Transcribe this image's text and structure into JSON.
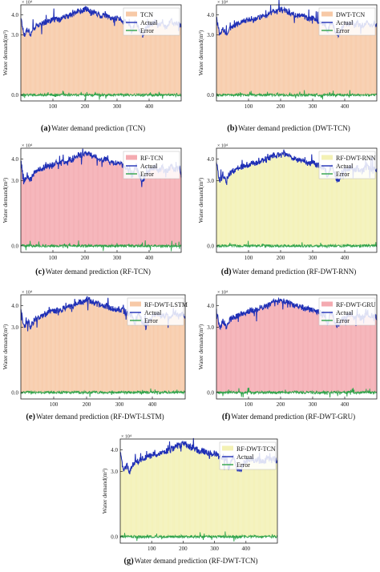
{
  "figure": {
    "colors": {
      "orange_fill": "#f7c9a6",
      "pink_fill": "#f4aab0",
      "yellow_fill": "#f3f1b4",
      "actual_line": "#1f2fb5",
      "error_line": "#2fa34a",
      "axis": "#222222"
    }
  },
  "chart_data": [
    {
      "id": "a",
      "type": "line",
      "caption_letter": "(a)",
      "caption_text": "Water demand prediction (TCN)",
      "ylabel": "Water demand(m³)",
      "xlabel": "",
      "y_scale_note": "× 10⁴",
      "xticks": [
        100,
        200,
        300,
        400
      ],
      "yticks": [
        "4.0",
        "3.0",
        "0.0"
      ],
      "xlim": [
        0,
        500
      ],
      "ylim": [
        -0.3,
        4.5
      ],
      "fill_color": "orange",
      "series": [
        {
          "name": "TCN",
          "style": "filled"
        },
        {
          "name": "Actual",
          "style": "line"
        },
        {
          "name": "Error",
          "style": "line"
        }
      ]
    },
    {
      "id": "b",
      "type": "line",
      "caption_letter": "(b)",
      "caption_text": "Water demand prediction (DWT-TCN)",
      "ylabel": "Water demand(m³)",
      "xlabel": "",
      "y_scale_note": "× 10⁴",
      "xticks": [
        100,
        200,
        300,
        400
      ],
      "yticks": [
        "4.0",
        "3.0",
        "0.0"
      ],
      "xlim": [
        0,
        500
      ],
      "ylim": [
        -0.3,
        4.5
      ],
      "fill_color": "orange",
      "series": [
        {
          "name": "DWT-TCN",
          "style": "filled"
        },
        {
          "name": "Actual",
          "style": "line"
        },
        {
          "name": "Error",
          "style": "line"
        }
      ]
    },
    {
      "id": "c",
      "type": "line",
      "caption_letter": "(c)",
      "caption_text": "Water demand prediction (RF-TCN)",
      "ylabel": "Water demand(m³)",
      "xlabel": "",
      "y_scale_note": "× 10⁴",
      "xticks": [
        100,
        200,
        300,
        400
      ],
      "yticks": [
        "4.0",
        "3.0",
        "0.0"
      ],
      "xlim": [
        0,
        500
      ],
      "ylim": [
        -0.3,
        4.5
      ],
      "fill_color": "pink",
      "series": [
        {
          "name": "RF-TCN",
          "style": "filled"
        },
        {
          "name": "Actual",
          "style": "line"
        },
        {
          "name": "Error",
          "style": "line"
        }
      ]
    },
    {
      "id": "d",
      "type": "line",
      "caption_letter": "(d)",
      "caption_text": "Water demand prediction (RF-DWT-RNN)",
      "ylabel": "Water demand(m³)",
      "xlabel": "",
      "y_scale_note": "× 10⁴",
      "xticks": [
        100,
        200,
        300,
        400
      ],
      "yticks": [
        "4.0",
        "3.0",
        "0.0"
      ],
      "xlim": [
        0,
        500
      ],
      "ylim": [
        -0.3,
        4.5
      ],
      "fill_color": "yellow",
      "series": [
        {
          "name": "RF-DWT-RNN",
          "style": "filled"
        },
        {
          "name": "Actual",
          "style": "line"
        },
        {
          "name": "Error",
          "style": "line"
        }
      ]
    },
    {
      "id": "e",
      "type": "line",
      "caption_letter": "(e)",
      "caption_text": "Water demand prediction (RF-DWT-LSTM)",
      "ylabel": "Water demand(m³)",
      "xlabel": "",
      "y_scale_note": "× 10⁴",
      "xticks": [
        100,
        200,
        300,
        400
      ],
      "yticks": [
        "4.0",
        "3.0",
        "0.0"
      ],
      "xlim": [
        0,
        500
      ],
      "ylim": [
        -0.3,
        4.5
      ],
      "fill_color": "orange",
      "series": [
        {
          "name": "RF-DWT-LSTM",
          "style": "filled"
        },
        {
          "name": "Actual",
          "style": "line"
        },
        {
          "name": "Error",
          "style": "line"
        }
      ]
    },
    {
      "id": "f",
      "type": "line",
      "caption_letter": "(f)",
      "caption_text": "Water demand prediction (RF-DWT-GRU)",
      "ylabel": "Water demand(m³)",
      "xlabel": "",
      "y_scale_note": "× 10⁴",
      "xticks": [
        100,
        200,
        300,
        400
      ],
      "yticks": [
        "4.0",
        "3.0",
        "0.0"
      ],
      "xlim": [
        0,
        500
      ],
      "ylim": [
        -0.3,
        4.5
      ],
      "fill_color": "pink",
      "series": [
        {
          "name": "RF-DWT-GRU",
          "style": "filled"
        },
        {
          "name": "Actual",
          "style": "line"
        },
        {
          "name": "Error",
          "style": "line"
        }
      ]
    },
    {
      "id": "g",
      "type": "line",
      "caption_letter": "(g)",
      "caption_text": "Water demand prediction (RF-DWT-TCN)",
      "ylabel": "Water demand(m³)",
      "xlabel": "",
      "y_scale_note": "× 10⁴",
      "xticks": [
        100,
        200,
        300,
        400
      ],
      "yticks": [
        "4.0",
        "3.0",
        "0.0"
      ],
      "xlim": [
        0,
        500
      ],
      "ylim": [
        -0.3,
        4.5
      ],
      "fill_color": "yellow",
      "series": [
        {
          "name": "RF-DWT-TCN",
          "style": "filled"
        },
        {
          "name": "Actual",
          "style": "line"
        },
        {
          "name": "Error",
          "style": "line"
        }
      ]
    }
  ],
  "actual_profile": {
    "x": [
      0,
      5,
      10,
      15,
      20,
      25,
      30,
      40,
      50,
      60,
      70,
      80,
      90,
      100,
      110,
      120,
      130,
      140,
      150,
      160,
      170,
      180,
      190,
      200,
      210,
      220,
      230,
      240,
      250,
      260,
      270,
      280,
      290,
      300,
      310,
      320,
      330,
      340,
      345,
      350,
      355,
      360,
      370,
      380,
      390,
      400,
      410,
      420,
      430,
      440,
      450,
      460,
      470,
      480,
      490,
      500
    ],
    "y": [
      3.9,
      3.4,
      3.0,
      3.1,
      3.3,
      3.2,
      3.0,
      3.3,
      3.45,
      3.5,
      3.6,
      3.65,
      3.7,
      3.75,
      3.8,
      3.75,
      3.85,
      3.9,
      3.95,
      4.0,
      4.1,
      4.2,
      4.15,
      4.3,
      4.25,
      4.15,
      4.1,
      4.05,
      3.95,
      4.0,
      3.9,
      3.85,
      3.8,
      3.85,
      3.75,
      3.7,
      3.6,
      3.55,
      3.1,
      3.3,
      3.6,
      3.65,
      3.2,
      3.0,
      3.3,
      3.5,
      3.55,
      3.65,
      3.45,
      3.6,
      3.4,
      3.5,
      3.7,
      3.5,
      3.6,
      3.45
    ]
  }
}
